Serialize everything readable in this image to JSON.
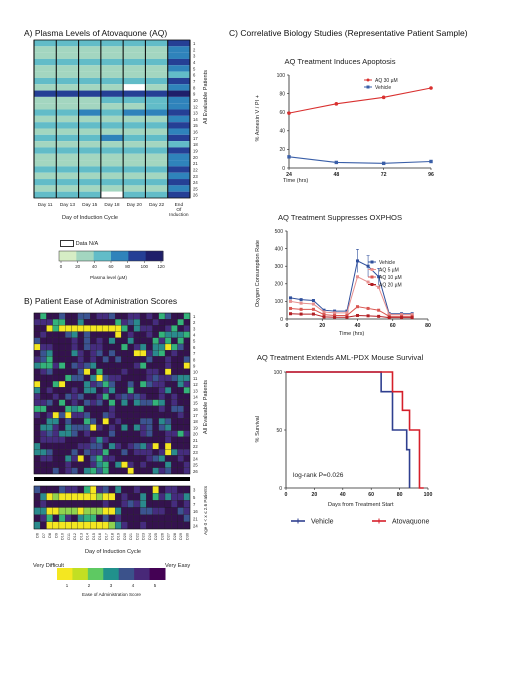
{
  "panel_a": {
    "title": "A) Plasma Levels of Atovaquone (AQ)",
    "xlabel": "Day of Induction Cycle",
    "ylabel": "All Evaluable Patients",
    "legend_na": "Data N/A",
    "colorbar_label": "Plasma level (µM)",
    "colorbar_ticks": [
      "0",
      "20",
      "40",
      "60",
      "80",
      "100",
      "120"
    ],
    "colors": [
      "#d6edc5",
      "#a3d6c0",
      "#62bcc8",
      "#2f83bb",
      "#253f95",
      "#1f1f6a"
    ]
  },
  "panel_b": {
    "title": "B) Patient Ease of Administration Scores",
    "ylabel_top": "All Evaluable Patients",
    "ylabel_bottom": "Age 0 < x ≤ 2.6 Patients",
    "xlabel": "Day of Induction Cycle",
    "legend_left": "Very Difficult",
    "legend_right": "Very Easy",
    "colorbar_label": "Ease of Administration Score",
    "colorbar_ticks": [
      "1",
      "2",
      "3",
      "4",
      "5"
    ],
    "colors": [
      "#f4e721",
      "#8fd24f",
      "#34b37a",
      "#2a8a8d",
      "#3b5491",
      "#452c7e",
      "#34124e"
    ]
  },
  "panel_c_title": "C) Correlative Biology Studies (Representative Patient Sample)",
  "chart_data": [
    {
      "type": "heatmap",
      "title": "A) Plasma Levels of Atovaquone (AQ)",
      "x": [
        "Day 11",
        "Day 13",
        "Day 15",
        "Day 18",
        "Day 20",
        "Day 22",
        "End Of Induction"
      ],
      "y": [
        "1",
        "2",
        "3",
        "4",
        "5",
        "6",
        "7",
        "8",
        "9",
        "10",
        "12",
        "13",
        "14",
        "15",
        "16",
        "17",
        "18",
        "19",
        "20",
        "21",
        "22",
        "23",
        "24",
        "25",
        "26"
      ],
      "value_range": [
        0,
        120
      ],
      "values": [
        [
          2,
          2,
          2,
          2,
          2,
          2,
          4
        ],
        [
          1,
          1,
          1,
          1,
          1,
          1,
          3
        ],
        [
          1,
          1,
          1,
          1,
          1,
          1,
          3
        ],
        [
          2,
          2,
          2,
          2,
          2,
          2,
          4
        ],
        [
          1,
          1,
          1,
          1,
          1,
          1,
          3
        ],
        [
          1,
          1,
          1,
          1,
          1,
          1,
          2
        ],
        [
          2,
          2,
          2,
          2,
          2,
          2,
          4
        ],
        [
          1,
          1,
          1,
          1,
          0,
          1,
          3
        ],
        [
          4,
          4,
          4,
          4,
          4,
          4,
          5
        ],
        [
          1,
          1,
          1,
          2,
          2,
          2,
          3
        ],
        [
          1,
          1,
          1,
          1,
          1,
          2,
          3
        ],
        [
          2,
          2,
          3,
          2,
          3,
          3,
          4
        ],
        [
          1,
          1,
          1,
          1,
          1,
          1,
          3
        ],
        [
          2,
          2,
          2,
          2,
          2,
          2,
          4
        ],
        [
          1,
          1,
          1,
          1,
          1,
          1,
          3
        ],
        [
          2,
          2,
          2,
          3,
          2,
          2,
          4
        ],
        [
          1,
          1,
          1,
          1,
          1,
          1,
          2
        ],
        [
          2,
          2,
          2,
          2,
          2,
          2,
          4
        ],
        [
          1,
          1,
          1,
          1,
          1,
          1,
          3
        ],
        [
          1,
          1,
          1,
          1,
          1,
          1,
          3
        ],
        [
          2,
          2,
          2,
          2,
          2,
          2,
          4
        ],
        [
          1,
          1,
          1,
          1,
          1,
          1,
          3
        ],
        [
          2,
          2,
          2,
          2,
          2,
          2,
          4
        ],
        [
          1,
          1,
          1,
          1,
          1,
          1,
          3
        ],
        [
          2,
          2,
          2,
          0,
          2,
          2,
          4
        ]
      ]
    },
    {
      "type": "heatmap",
      "title": "B) Patient Ease of Administration Scores",
      "x": [
        "D6",
        "D7",
        "D8",
        "D9",
        "D10",
        "D11",
        "D12",
        "D13",
        "D14",
        "D15",
        "D16",
        "D17",
        "D18",
        "D19",
        "D20",
        "D21",
        "D22",
        "D23",
        "D24",
        "D25",
        "D26",
        "D27",
        "D28",
        "D29",
        "D30"
      ],
      "y_top": [
        "1",
        "2",
        "3",
        "4",
        "5",
        "6",
        "7",
        "8",
        "9",
        "10",
        "11",
        "12",
        "13",
        "14",
        "15",
        "16",
        "17",
        "18",
        "19",
        "20",
        "21",
        "22",
        "23",
        "24",
        "25",
        "26"
      ],
      "y_bottom": [
        "3",
        "5",
        "7",
        "16",
        "21",
        "24"
      ],
      "value_range": [
        1,
        5
      ]
    },
    {
      "type": "line",
      "title": "AQ Treatment Induces Apoptosis",
      "xlabel": "Time (hrs)",
      "ylabel": "% Annexin V / PI +",
      "x": [
        24,
        48,
        72,
        96
      ],
      "xlim": [
        24,
        96
      ],
      "ylim": [
        0,
        100
      ],
      "yticks": [
        0,
        20,
        40,
        60,
        80,
        100
      ],
      "legend_position": "top-right",
      "series": [
        {
          "name": "AQ 30 µM",
          "color": "#d9302f",
          "values": [
            59,
            69,
            76,
            86
          ]
        },
        {
          "name": "Vehicle",
          "color": "#3a5fa8",
          "values": [
            12,
            6,
            5,
            7
          ]
        }
      ]
    },
    {
      "type": "line",
      "title": "AQ Treatment Suppresses OXPHOS",
      "xlabel": "Time (hrs)",
      "ylabel": "Oxygen Consumption Rate",
      "x": [
        2,
        8,
        15,
        21,
        27,
        34,
        40,
        46,
        52,
        58,
        65,
        71
      ],
      "xlim": [
        0,
        80
      ],
      "ylim": [
        0,
        500
      ],
      "xticks": [
        0,
        20,
        40,
        60,
        80
      ],
      "yticks": [
        0,
        100,
        200,
        300,
        400,
        500
      ],
      "legend_position": "top-right",
      "series": [
        {
          "name": "Vehicle",
          "color": "#2f4f9c",
          "values": [
            120,
            110,
            105,
            50,
            45,
            45,
            330,
            300,
            240,
            30,
            30,
            30
          ]
        },
        {
          "name": "AQ 5 µM",
          "color": "#e6908f",
          "values": [
            100,
            90,
            85,
            40,
            35,
            35,
            240,
            210,
            180,
            25,
            25,
            25
          ]
        },
        {
          "name": "AQ 10 µM",
          "color": "#d95550",
          "values": [
            60,
            55,
            55,
            25,
            20,
            20,
            70,
            60,
            50,
            15,
            15,
            15
          ]
        },
        {
          "name": "AQ 20 µM",
          "color": "#b21f24",
          "values": [
            30,
            28,
            28,
            12,
            10,
            10,
            20,
            18,
            15,
            8,
            8,
            8
          ]
        }
      ]
    },
    {
      "type": "line",
      "title": "AQ Treatment Extends AML-PDX Mouse Survival",
      "xlabel": "Days from Treatment Start",
      "ylabel": "% Survival",
      "xlim": [
        0,
        100
      ],
      "ylim": [
        0,
        100
      ],
      "xticks": [
        0,
        20,
        40,
        60,
        80,
        100
      ],
      "yticks": [
        0,
        50,
        100
      ],
      "annotation": "log-rank P=0.026",
      "legend_position": "bottom",
      "series": [
        {
          "name": "Vehicle",
          "color": "#2f3f8f",
          "x": [
            0,
            67,
            67,
            75,
            75,
            85,
            85,
            87,
            87
          ],
          "values": [
            100,
            100,
            83,
            83,
            50,
            50,
            33,
            33,
            0
          ]
        },
        {
          "name": "Atovaquone",
          "color": "#d51f2a",
          "x": [
            0,
            75,
            75,
            82,
            82,
            87,
            87,
            94,
            94,
            97
          ],
          "values": [
            100,
            100,
            83,
            83,
            67,
            67,
            50,
            50,
            0,
            0
          ]
        }
      ]
    }
  ]
}
